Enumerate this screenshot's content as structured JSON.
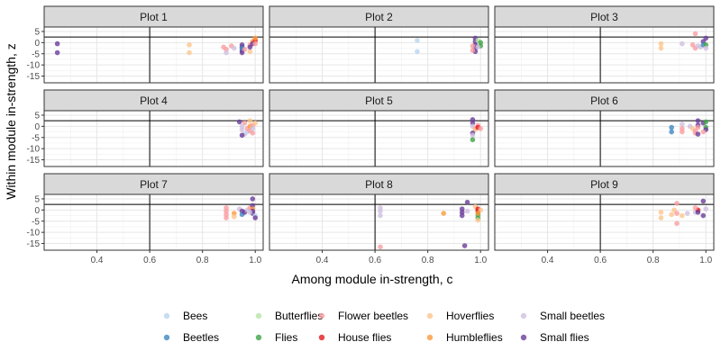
{
  "chart_data": {
    "type": "scatter",
    "xlabel": "Among module in-strength, c",
    "ylabel": "Within module in-strength, z",
    "xlim": [
      0.2,
      1.03
    ],
    "ylim": [
      -18,
      7
    ],
    "x_ticks": [
      0.4,
      0.6,
      0.8,
      1.0
    ],
    "x_tick_labels": [
      "0.4",
      "0.6",
      "0.8",
      "1.0"
    ],
    "y_ticks": [
      5,
      0,
      -5,
      -10,
      -15
    ],
    "y_tick_labels": [
      "5",
      "0",
      "-5",
      "-10",
      "-15"
    ],
    "reference_lines": {
      "vertical_c": 0.6,
      "horizontal_z": 2.5
    },
    "grid": true,
    "legend_position": "bottom",
    "series_colors": {
      "Bees": "#b9d6ef",
      "Beetles": "#3f87c2",
      "Butterflies": "#b7e4a6",
      "Flies": "#3fa446",
      "Flower beetles": "#fa9ea0",
      "House flies": "#e31a1c",
      "Hoverflies": "#fdc58c",
      "Humbleflies": "#fb9a3c",
      "Small beetles": "#cfc1e0",
      "Small flies": "#6a3d9a"
    },
    "legend": [
      "Bees",
      "Butterflies",
      "Flower beetles",
      "Hoverflies",
      "Small beetles",
      "Beetles",
      "Flies",
      "House flies",
      "Humbleflies",
      "Small flies"
    ],
    "panels": [
      {
        "title": "Plot 1",
        "points": [
          [
            "Small flies",
            0.25,
            -0.5
          ],
          [
            "Small flies",
            0.25,
            -4.5
          ],
          [
            "Hoverflies",
            0.75,
            -1.0
          ],
          [
            "Hoverflies",
            0.75,
            -4.5
          ],
          [
            "Flower beetles",
            0.88,
            -2.0
          ],
          [
            "Flower beetles",
            0.89,
            -3.0
          ],
          [
            "Small beetles",
            0.89,
            -4.5
          ],
          [
            "Flower beetles",
            0.91,
            -1.5
          ],
          [
            "Small beetles",
            0.92,
            -2.5
          ],
          [
            "Small flies",
            0.95,
            -1.0
          ],
          [
            "Small flies",
            0.95,
            -2.0
          ],
          [
            "Small flies",
            0.95,
            -3.5
          ],
          [
            "Small flies",
            0.95,
            -4.5
          ],
          [
            "Beetles",
            0.95,
            -2.5
          ],
          [
            "Flower beetles",
            0.96,
            -3.0
          ],
          [
            "Flower beetles",
            0.98,
            -1.0
          ],
          [
            "Hoverflies",
            0.98,
            -4.0
          ],
          [
            "Small flies",
            0.98,
            -2.0
          ],
          [
            "Humbleflies",
            0.99,
            0.5
          ],
          [
            "Small flies",
            0.99,
            -0.5
          ],
          [
            "House flies",
            1.0,
            1.0
          ],
          [
            "Flower beetles",
            1.0,
            -0.5
          ],
          [
            "Humbleflies",
            1.0,
            2.0
          ]
        ]
      },
      {
        "title": "Plot 2",
        "points": [
          [
            "Bees",
            0.76,
            1.0
          ],
          [
            "Bees",
            0.76,
            -4.0
          ],
          [
            "Small flies",
            0.98,
            2.0
          ],
          [
            "Small flies",
            0.98,
            0.5
          ],
          [
            "Small flies",
            0.98,
            -1.0
          ],
          [
            "Small flies",
            0.98,
            -2.5
          ],
          [
            "Small flies",
            0.98,
            -4.0
          ],
          [
            "Flower beetles",
            0.97,
            -1.5
          ],
          [
            "Flower beetles",
            0.97,
            -3.5
          ],
          [
            "Butterflies",
            0.99,
            1.0
          ],
          [
            "Flies",
            1.0,
            0.0
          ],
          [
            "Flies",
            1.0,
            -1.5
          ],
          [
            "Small beetles",
            0.99,
            -2.0
          ]
        ]
      },
      {
        "title": "Plot 3",
        "points": [
          [
            "Hoverflies",
            0.83,
            -0.5
          ],
          [
            "Hoverflies",
            0.83,
            -2.5
          ],
          [
            "Small beetles",
            0.91,
            -0.5
          ],
          [
            "Flower beetles",
            0.96,
            4.0
          ],
          [
            "Flower beetles",
            0.95,
            -1.0
          ],
          [
            "Flower beetles",
            0.96,
            -2.5
          ],
          [
            "Small beetles",
            0.97,
            -1.5
          ],
          [
            "Small beetles",
            0.98,
            -2.0
          ],
          [
            "Small flies",
            0.99,
            0.5
          ],
          [
            "Beetles",
            0.99,
            -1.0
          ],
          [
            "Small flies",
            1.0,
            2.0
          ],
          [
            "Flies",
            1.0,
            -1.0
          ],
          [
            "Small beetles",
            1.0,
            -2.5
          ]
        ]
      },
      {
        "title": "Plot 4",
        "points": [
          [
            "Small flies",
            0.94,
            2.0
          ],
          [
            "Flower beetles",
            0.96,
            1.5
          ],
          [
            "Small beetles",
            0.95,
            0.0
          ],
          [
            "Small beetles",
            0.95,
            -1.5
          ],
          [
            "Small beetles",
            0.96,
            -3.5
          ],
          [
            "Small flies",
            0.95,
            -4.0
          ],
          [
            "Bees",
            0.97,
            -2.5
          ],
          [
            "Flower beetles",
            0.97,
            -1.0
          ],
          [
            "Flower beetles",
            0.98,
            -2.0
          ],
          [
            "Hoverflies",
            0.98,
            2.5
          ],
          [
            "Flower beetles",
            0.99,
            -3.0
          ],
          [
            "Humbleflies",
            0.98,
            0.0
          ],
          [
            "Flower beetles",
            0.99,
            0.5
          ],
          [
            "Hoverflies",
            1.0,
            1.5
          ],
          [
            "Small beetles",
            0.99,
            -1.0
          ]
        ]
      },
      {
        "title": "Plot 5",
        "points": [
          [
            "Small flies",
            0.97,
            3.0
          ],
          [
            "Small flies",
            0.97,
            1.5
          ],
          [
            "Small beetles",
            0.97,
            0.0
          ],
          [
            "Flower beetles",
            0.98,
            -1.0
          ],
          [
            "Flower beetles",
            0.99,
            0.5
          ],
          [
            "Hoverflies",
            0.98,
            -1.5
          ],
          [
            "House flies",
            0.99,
            -0.5
          ],
          [
            "Small flies",
            0.97,
            -3.0
          ],
          [
            "Small beetles",
            0.97,
            -4.0
          ],
          [
            "Flies",
            0.97,
            -6.0
          ],
          [
            "Flower beetles",
            1.0,
            -1.0
          ]
        ]
      },
      {
        "title": "Plot 6",
        "points": [
          [
            "Beetles",
            0.87,
            -0.5
          ],
          [
            "Beetles",
            0.87,
            -2.5
          ],
          [
            "Small beetles",
            0.91,
            1.0
          ],
          [
            "Flower beetles",
            0.91,
            -1.0
          ],
          [
            "Flower beetles",
            0.91,
            -2.5
          ],
          [
            "Small beetles",
            0.94,
            0.0
          ],
          [
            "Hoverflies",
            0.95,
            -1.0
          ],
          [
            "Flower beetles",
            0.96,
            -2.0
          ],
          [
            "Flower beetles",
            0.96,
            -3.0
          ],
          [
            "Small flies",
            0.97,
            2.5
          ],
          [
            "Small flies",
            0.97,
            0.5
          ],
          [
            "Flower beetles",
            0.97,
            -0.5
          ],
          [
            "Small flies",
            0.97,
            -3.5
          ],
          [
            "Small flies",
            0.99,
            1.5
          ],
          [
            "Flies",
            1.0,
            2.0
          ],
          [
            "Flies",
            1.0,
            -0.5
          ],
          [
            "Small flies",
            1.0,
            -1.5
          ],
          [
            "Flower beetles",
            0.99,
            -2.5
          ]
        ]
      },
      {
        "title": "Plot 7",
        "points": [
          [
            "Flower beetles",
            0.89,
            1.0
          ],
          [
            "Flower beetles",
            0.89,
            -0.5
          ],
          [
            "Flower beetles",
            0.89,
            -2.0
          ],
          [
            "Flower beetles",
            0.89,
            -3.5
          ],
          [
            "Humbleflies",
            0.92,
            -1.5
          ],
          [
            "Hoverflies",
            0.92,
            -3.0
          ],
          [
            "Small beetles",
            0.94,
            0.5
          ],
          [
            "Small flies",
            0.95,
            -0.5
          ],
          [
            "Beetles",
            0.95,
            -2.0
          ],
          [
            "Small flies",
            0.96,
            -1.0
          ],
          [
            "Small beetles",
            0.97,
            0.0
          ],
          [
            "Flower beetles",
            0.98,
            1.0
          ],
          [
            "Small flies",
            0.99,
            5.0
          ],
          [
            "Small flies",
            0.99,
            2.0
          ],
          [
            "Humbleflies",
            0.99,
            0.5
          ],
          [
            "Small flies",
            0.99,
            -0.5
          ],
          [
            "Small flies",
            0.99,
            -1.5
          ],
          [
            "Bees",
            1.0,
            -2.5
          ],
          [
            "Small flies",
            1.0,
            -3.5
          ],
          [
            "Small beetles",
            0.98,
            -1.0
          ]
        ]
      },
      {
        "title": "Plot 8",
        "points": [
          [
            "Small beetles",
            0.62,
            1.0
          ],
          [
            "Small beetles",
            0.62,
            -0.5
          ],
          [
            "Small beetles",
            0.62,
            -2.5
          ],
          [
            "Flower beetles",
            0.62,
            -16.5
          ],
          [
            "Humbleflies",
            0.86,
            -1.5
          ],
          [
            "Small flies",
            0.93,
            0.5
          ],
          [
            "Small flies",
            0.93,
            -1.0
          ],
          [
            "Small flies",
            0.93,
            -2.5
          ],
          [
            "Small flies",
            0.95,
            3.5
          ],
          [
            "Small beetles",
            0.95,
            -0.5
          ],
          [
            "Small flies",
            0.94,
            -16.0
          ],
          [
            "Hoverflies",
            0.98,
            1.5
          ],
          [
            "House flies",
            0.99,
            0.5
          ],
          [
            "House flies",
            0.99,
            -0.5
          ],
          [
            "Flies",
            0.99,
            -2.0
          ],
          [
            "Flies",
            0.99,
            -3.5
          ],
          [
            "Hoverflies",
            0.99,
            -4.5
          ],
          [
            "Hoverflies",
            1.0,
            0.0
          ],
          [
            "Humbleflies",
            0.99,
            -1.5
          ]
        ]
      },
      {
        "title": "Plot 9",
        "points": [
          [
            "Hoverflies",
            0.83,
            -1.0
          ],
          [
            "Hoverflies",
            0.83,
            -3.5
          ],
          [
            "Hoverflies",
            0.87,
            -2.0
          ],
          [
            "Hoverflies",
            0.88,
            0.0
          ],
          [
            "Flower beetles",
            0.89,
            3.0
          ],
          [
            "Flower beetles",
            0.89,
            -1.5
          ],
          [
            "Flower beetles",
            0.89,
            -6.0
          ],
          [
            "Hoverflies",
            0.91,
            -2.5
          ],
          [
            "Small beetles",
            0.93,
            -1.5
          ],
          [
            "Small beetles",
            0.96,
            -1.0
          ],
          [
            "House flies",
            0.97,
            0.0
          ],
          [
            "Small flies",
            0.97,
            -1.0
          ],
          [
            "Small flies",
            0.99,
            4.0
          ],
          [
            "Small flies",
            0.99,
            -2.5
          ],
          [
            "Small beetles",
            1.0,
            0.5
          ],
          [
            "Flower beetles",
            0.96,
            1.0
          ]
        ]
      }
    ]
  }
}
